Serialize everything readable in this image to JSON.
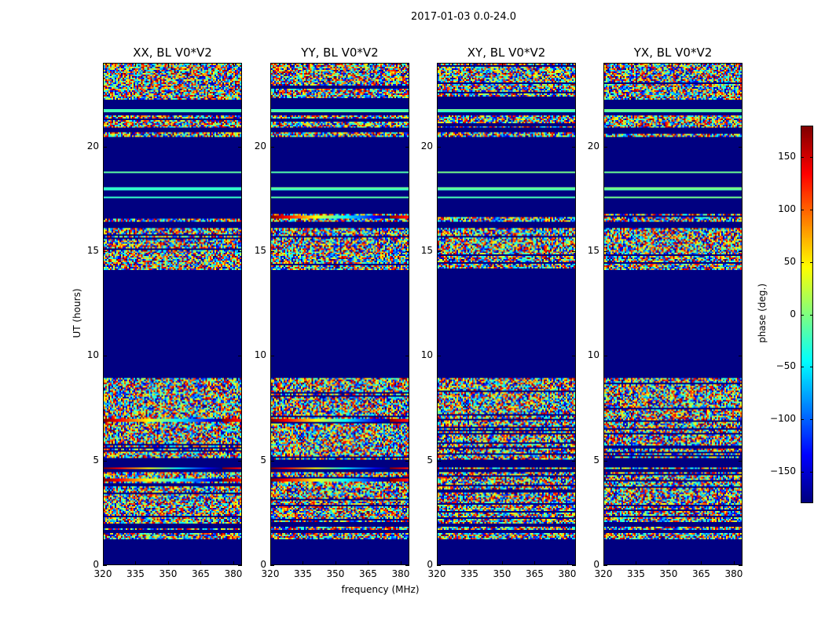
{
  "chart_data": {
    "type": "heatmap",
    "title": "2017-01-03 0.0-24.0",
    "panels": [
      {
        "title": "XX, BL V0*V2",
        "gradient_rows": true
      },
      {
        "title": "YY, BL V0*V2",
        "gradient_rows": true
      },
      {
        "title": "XY, BL V0*V2",
        "gradient_rows": false
      },
      {
        "title": "YX, BL V0*V2",
        "gradient_rows": false
      }
    ],
    "xlabel": "frequency (MHz)",
    "ylabel": "UT (hours)",
    "xlim": [
      320,
      384
    ],
    "ylim": [
      0,
      24
    ],
    "xticks": [
      "320",
      "335",
      "350",
      "365",
      "380"
    ],
    "xtick_values": [
      320,
      335,
      350,
      365,
      380
    ],
    "yticks": [
      "0",
      "5",
      "10",
      "15",
      "20"
    ],
    "ytick_values": [
      0,
      5,
      10,
      15,
      20
    ],
    "colorbar": {
      "label": "phase (deg.)",
      "clim": [
        -180,
        180
      ],
      "colormap": "jet",
      "ticks": [
        "150",
        "100",
        "50",
        "0",
        "−50",
        "−100",
        "−150"
      ],
      "tick_values": [
        150,
        100,
        50,
        0,
        -50,
        -100,
        -150
      ]
    },
    "flagged_value": -180,
    "time_bands_hours": [
      [
        0,
        1.2,
        "flagged"
      ],
      [
        1.2,
        1.5,
        "noise"
      ],
      [
        1.5,
        1.65,
        "flagged"
      ],
      [
        1.65,
        1.78,
        "noise"
      ],
      [
        1.78,
        1.98,
        "flagged"
      ],
      [
        1.98,
        3.8,
        "noise"
      ],
      [
        3.8,
        4.4,
        "noise"
      ],
      [
        4.4,
        4.55,
        "flagged"
      ],
      [
        4.55,
        4.65,
        "gradient"
      ],
      [
        4.65,
        5.0,
        "flagged"
      ],
      [
        5.0,
        6.8,
        "noise"
      ],
      [
        6.8,
        8.95,
        "noise"
      ],
      [
        8.95,
        14.1,
        "flagged"
      ],
      [
        14.1,
        16.1,
        "noise"
      ],
      [
        16.1,
        16.4,
        "flagged"
      ],
      [
        16.4,
        16.8,
        "noise"
      ],
      [
        16.8,
        24,
        "flagged"
      ],
      [
        17.55,
        17.62,
        "line"
      ],
      [
        17.95,
        18.05,
        "line"
      ],
      [
        18.75,
        18.85,
        "line"
      ],
      [
        20.5,
        20.7,
        "noise"
      ],
      [
        20.9,
        21.5,
        "noise"
      ],
      [
        21.7,
        21.8,
        "line"
      ],
      [
        22.3,
        24,
        "noise"
      ]
    ]
  }
}
